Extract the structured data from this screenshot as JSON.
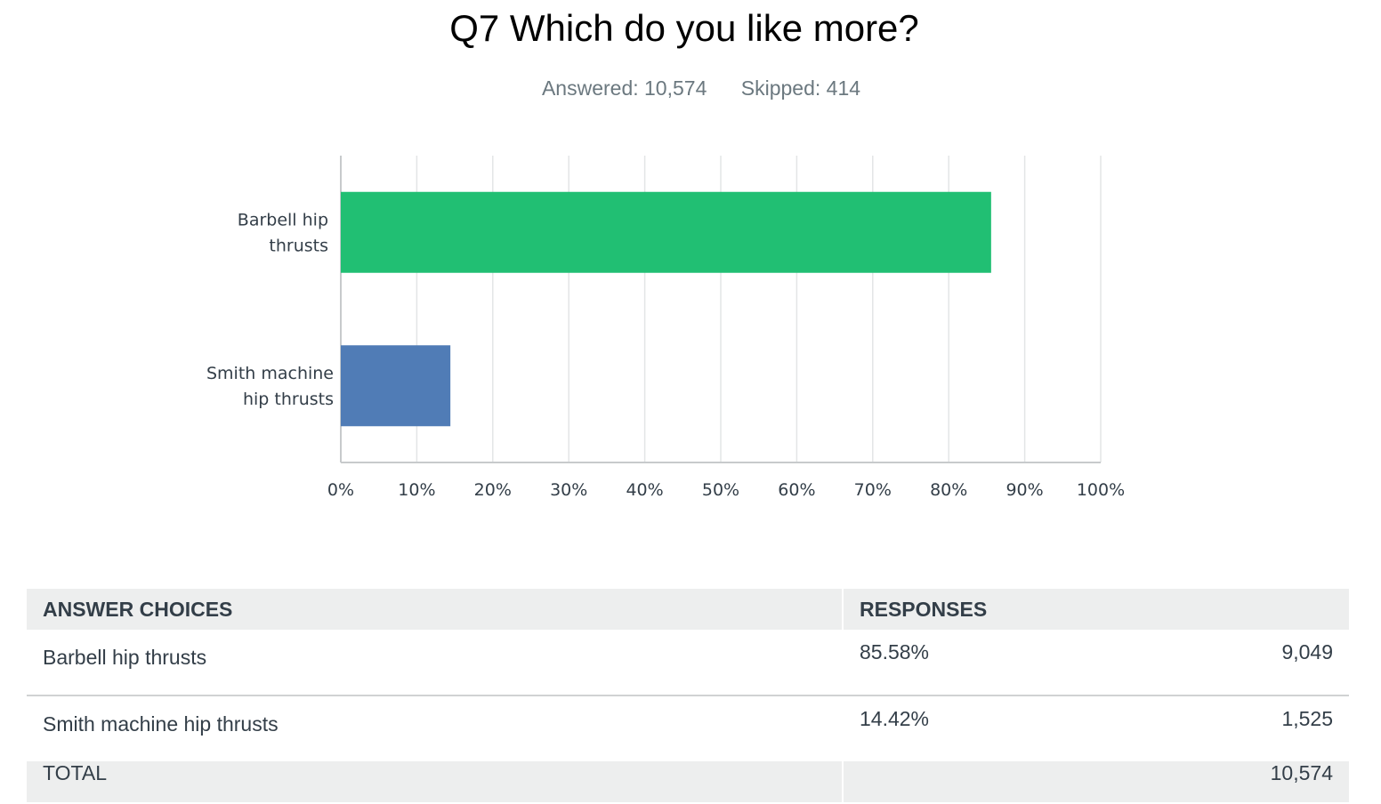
{
  "question": {
    "title": "Q7 Which do you like more?",
    "answered_label": "Answered: 10,574",
    "skipped_label": "Skipped: 414"
  },
  "chart_data": {
    "type": "bar",
    "orientation": "horizontal",
    "categories": [
      "Barbell hip thrusts",
      "Smith machine hip thrusts"
    ],
    "category_lines": [
      [
        "Barbell hip",
        "thrusts"
      ],
      [
        "Smith machine",
        "hip thrusts"
      ]
    ],
    "values": [
      85.58,
      14.42
    ],
    "colors": [
      "#21bf73",
      "#507cb6"
    ],
    "xlim": [
      0,
      100
    ],
    "xticks": [
      "0%",
      "10%",
      "20%",
      "30%",
      "40%",
      "50%",
      "60%",
      "70%",
      "80%",
      "90%",
      "100%"
    ],
    "grid": true
  },
  "table": {
    "headers": {
      "choices": "ANSWER CHOICES",
      "responses": "RESPONSES"
    },
    "rows": [
      {
        "choice": "Barbell hip thrusts",
        "percent": "85.58%",
        "count": "9,049"
      },
      {
        "choice": "Smith machine hip thrusts",
        "percent": "14.42%",
        "count": "1,525"
      }
    ],
    "total": {
      "label": "TOTAL",
      "count": "10,574"
    }
  }
}
